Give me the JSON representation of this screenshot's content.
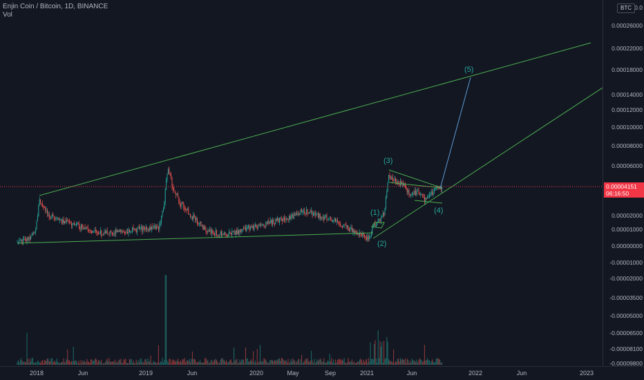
{
  "legend": {
    "symbol": "Enjin Coin / Bitcoin, 1D, BINANCE",
    "volume_label": "Vol"
  },
  "price_scale": {
    "currency": "BTC",
    "labels": [
      "0.0",
      "0.00026000",
      "0.00022000",
      "0.00018000",
      "0.00014000",
      "0.00012000",
      "0.00010000",
      "0.00008000",
      "0.00006000",
      "0.00004000",
      "0.00002000",
      "0.00001000",
      "0.00000000",
      "-0.00001000",
      "-0.00002000",
      "-0.00003500",
      "-0.00005000",
      "-0.00006500",
      "-0.00008100",
      "-0.00009800"
    ],
    "current_price": "0.00004151",
    "countdown": "06:16:50"
  },
  "time_scale": {
    "labels": [
      "2018",
      "Jun",
      "2019",
      "Jun",
      "2020",
      "May",
      "Sep",
      "2021",
      "Jun",
      "2022",
      "Jun",
      "2023"
    ]
  },
  "wave_labels": [
    "(1)",
    "(2)",
    "(3)",
    "(4)",
    "(5)"
  ],
  "colors": {
    "up": "#26a69a",
    "down": "#ef5350",
    "trendline": "#4caf50",
    "projection": "#5b9bd5",
    "price_line": "#f23645"
  },
  "chart_data": {
    "type": "candlestick",
    "title": "Enjin Coin / Bitcoin, 1D, BINANCE",
    "xlabel": "",
    "ylabel": "",
    "y_scale": "log",
    "current_price": 4.151e-05
  }
}
